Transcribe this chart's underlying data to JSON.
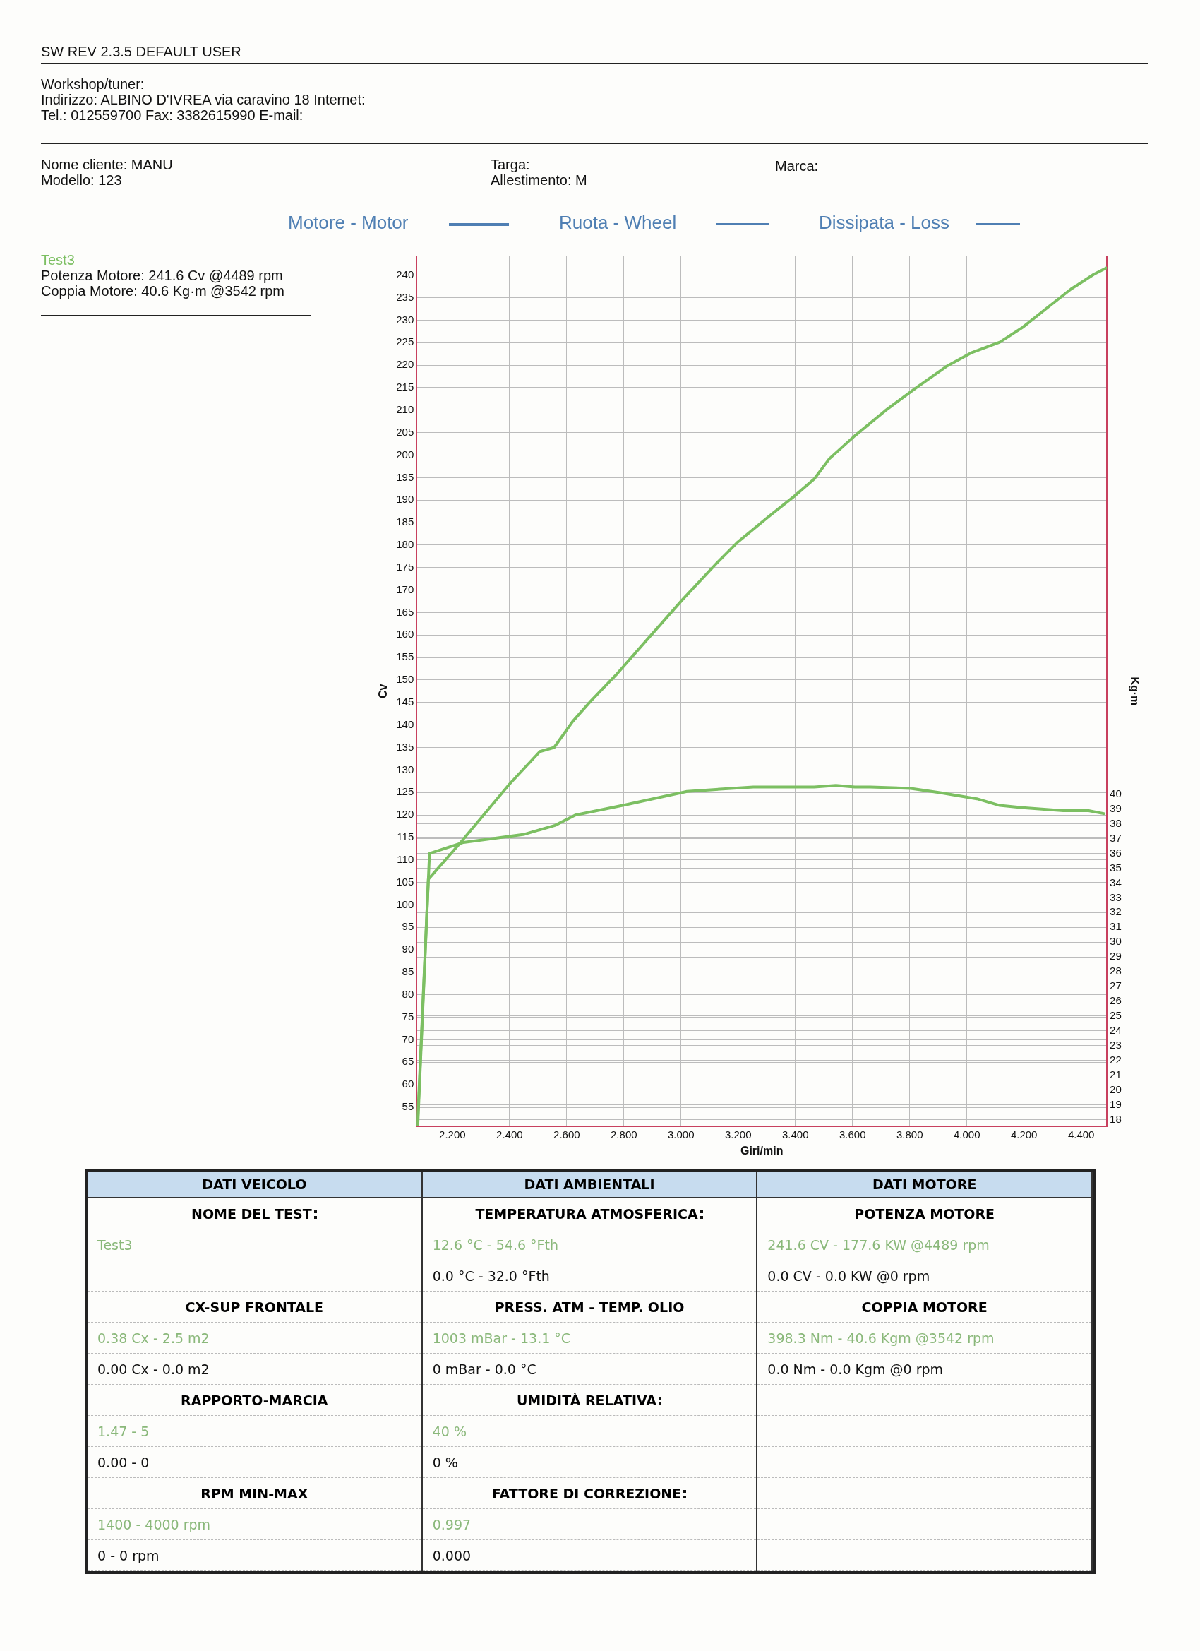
{
  "chart_data": [
    {
      "type": "other",
      "annotations": [
        "SW REV 2.3.5   DEFAULT USER",
        "Workshop/tuner:",
        "Indirizzo: ALBINO D'IVREA via caravino 18 Internet:",
        "Tel.: 012559700 Fax: 3382615990 E-mail:",
        "Nome cliente: MANU",
        "Modello: 123",
        "Targa:",
        "Allestimento: M",
        "Marca:"
      ]
    },
    {
      "type": "line",
      "xlabel": "Giri/min",
      "ylabel": "Cv",
      "y2label": "Kg·m",
      "grid": true,
      "legend": false,
      "annotations": [
        "Motore - Motor",
        "Ruota - Wheel",
        "Dissipata - Loss",
        "Test3",
        "Potenza Motore: 241.6 Cv @4489 rpm",
        "Coppia Motore: 40.6 Kg·m @3542 rpm"
      ],
      "xlim": [
        2.075,
        4.49
      ],
      "ylim": [
        50.8,
        244.2
      ],
      "y2lim": [
        17.55,
        76.4
      ],
      "xticks": [
        {
          "value": 2.2,
          "label": "2.200"
        },
        {
          "value": 2.4,
          "label": "2.400"
        },
        {
          "value": 2.6,
          "label": "2.600"
        },
        {
          "value": 2.8,
          "label": "2.800"
        },
        {
          "value": 3,
          "label": "3.000"
        },
        {
          "value": 3.2,
          "label": "3.200"
        },
        {
          "value": 3.4,
          "label": "3.400"
        },
        {
          "value": 3.6,
          "label": "3.600"
        },
        {
          "value": 3.8,
          "label": "3.800"
        },
        {
          "value": 4,
          "label": "4.000"
        },
        {
          "value": 4.2,
          "label": "4.200"
        },
        {
          "value": 4.4,
          "label": "4.400"
        }
      ],
      "yticks": [
        55,
        60,
        65,
        70,
        75,
        80,
        85,
        90,
        95,
        100,
        105,
        110,
        115,
        120,
        125,
        130,
        135,
        140,
        145,
        150,
        155,
        160,
        165,
        170,
        175,
        180,
        185,
        190,
        195,
        200,
        205,
        210,
        215,
        220,
        225,
        230,
        235,
        240
      ],
      "y2ticks": [
        18,
        19,
        20,
        21,
        22,
        23,
        24,
        25,
        26,
        27,
        28,
        29,
        30,
        31,
        32,
        33,
        34,
        35,
        36,
        37,
        38,
        39,
        40
      ],
      "series": [
        {
          "color": "#7cbf62",
          "x": [
            2.078,
            2.116,
            2.221,
            2.399,
            2.506,
            2.556,
            2.621,
            2.684,
            2.772,
            2.879,
            3.004,
            3.128,
            3.199,
            3.306,
            3.395,
            3.466,
            3.519,
            3.608,
            3.715,
            3.821,
            3.928,
            4.017,
            4.115,
            4.195,
            4.284,
            4.364,
            4.444,
            4.488
          ],
          "values": [
            51,
            105.7,
            113.3,
            126.8,
            134.1,
            135,
            140.8,
            145.3,
            151.1,
            158.8,
            167.8,
            176.2,
            180.7,
            186.3,
            190.8,
            194.7,
            199.2,
            204.3,
            209.9,
            214.9,
            219.7,
            222.8,
            225.1,
            228.4,
            232.9,
            236.9,
            240.2,
            241.6
          ]
        },
        {
          "color": "#7cbf62",
          "axis": "y2",
          "x": [
            2.079,
            2.12,
            2.239,
            2.452,
            2.559,
            2.63,
            2.808,
            3.021,
            3.253,
            3.466,
            3.542,
            3.608,
            3.662,
            3.804,
            3.91,
            4.035,
            4.115,
            4.195,
            4.337,
            4.426,
            4.479
          ],
          "values": [
            17.6,
            36,
            36.75,
            37.3,
            37.9,
            38.6,
            39.3,
            40.2,
            40.5,
            40.5,
            40.6,
            40.5,
            40.5,
            40.4,
            40.1,
            39.7,
            39.25,
            39.1,
            38.9,
            38.9,
            38.7
          ]
        }
      ]
    },
    {
      "type": "other",
      "title": "DATI VEICOLO",
      "categories": [
        "NOME DEL TEST",
        "Test3",
        null,
        "CX-SUP FRONTALE",
        "0.38 Cx - 2.5 m2",
        "0.00 Cx - 0.0 m2",
        "RAPPORTO-MARCIA",
        "1.47 - 5",
        "0.00 - 0",
        "RPM MIN-MAX",
        "1400 - 4000 rpm",
        "0 - 0 rpm"
      ]
    },
    {
      "type": "other",
      "title": "DATI AMBIENTALI",
      "categories": [
        "TEMPERATURA ATMOSFERICA",
        "12.6 °C - 54.6 °Fth",
        "0.0 °C - 32.0 °Fth",
        "PRESS. ATM - TEMP. OLIO",
        "1003 mBar - 13.1 °C",
        "0 mBar - 0.0 °C",
        "UMIDITÀ RELATIVA",
        "40 %",
        "0 %",
        "FATTORE DI CORREZIONE",
        "0.997",
        "0.000"
      ]
    },
    {
      "type": "other",
      "title": "DATI MOTORE",
      "categories": [
        "POTENZA MOTORE",
        "241.6 CV - 177.6 KW  @4489 rpm",
        "0.0 CV - 0.0 KW  @0 rpm",
        "COPPIA MOTORE",
        "398.3 Nm - 40.6 Kgm  @3542 rpm",
        "0.0 Nm - 0.0 Kgm  @0 rpm",
        null,
        null,
        null,
        null,
        null,
        null
      ]
    }
  ]
}
